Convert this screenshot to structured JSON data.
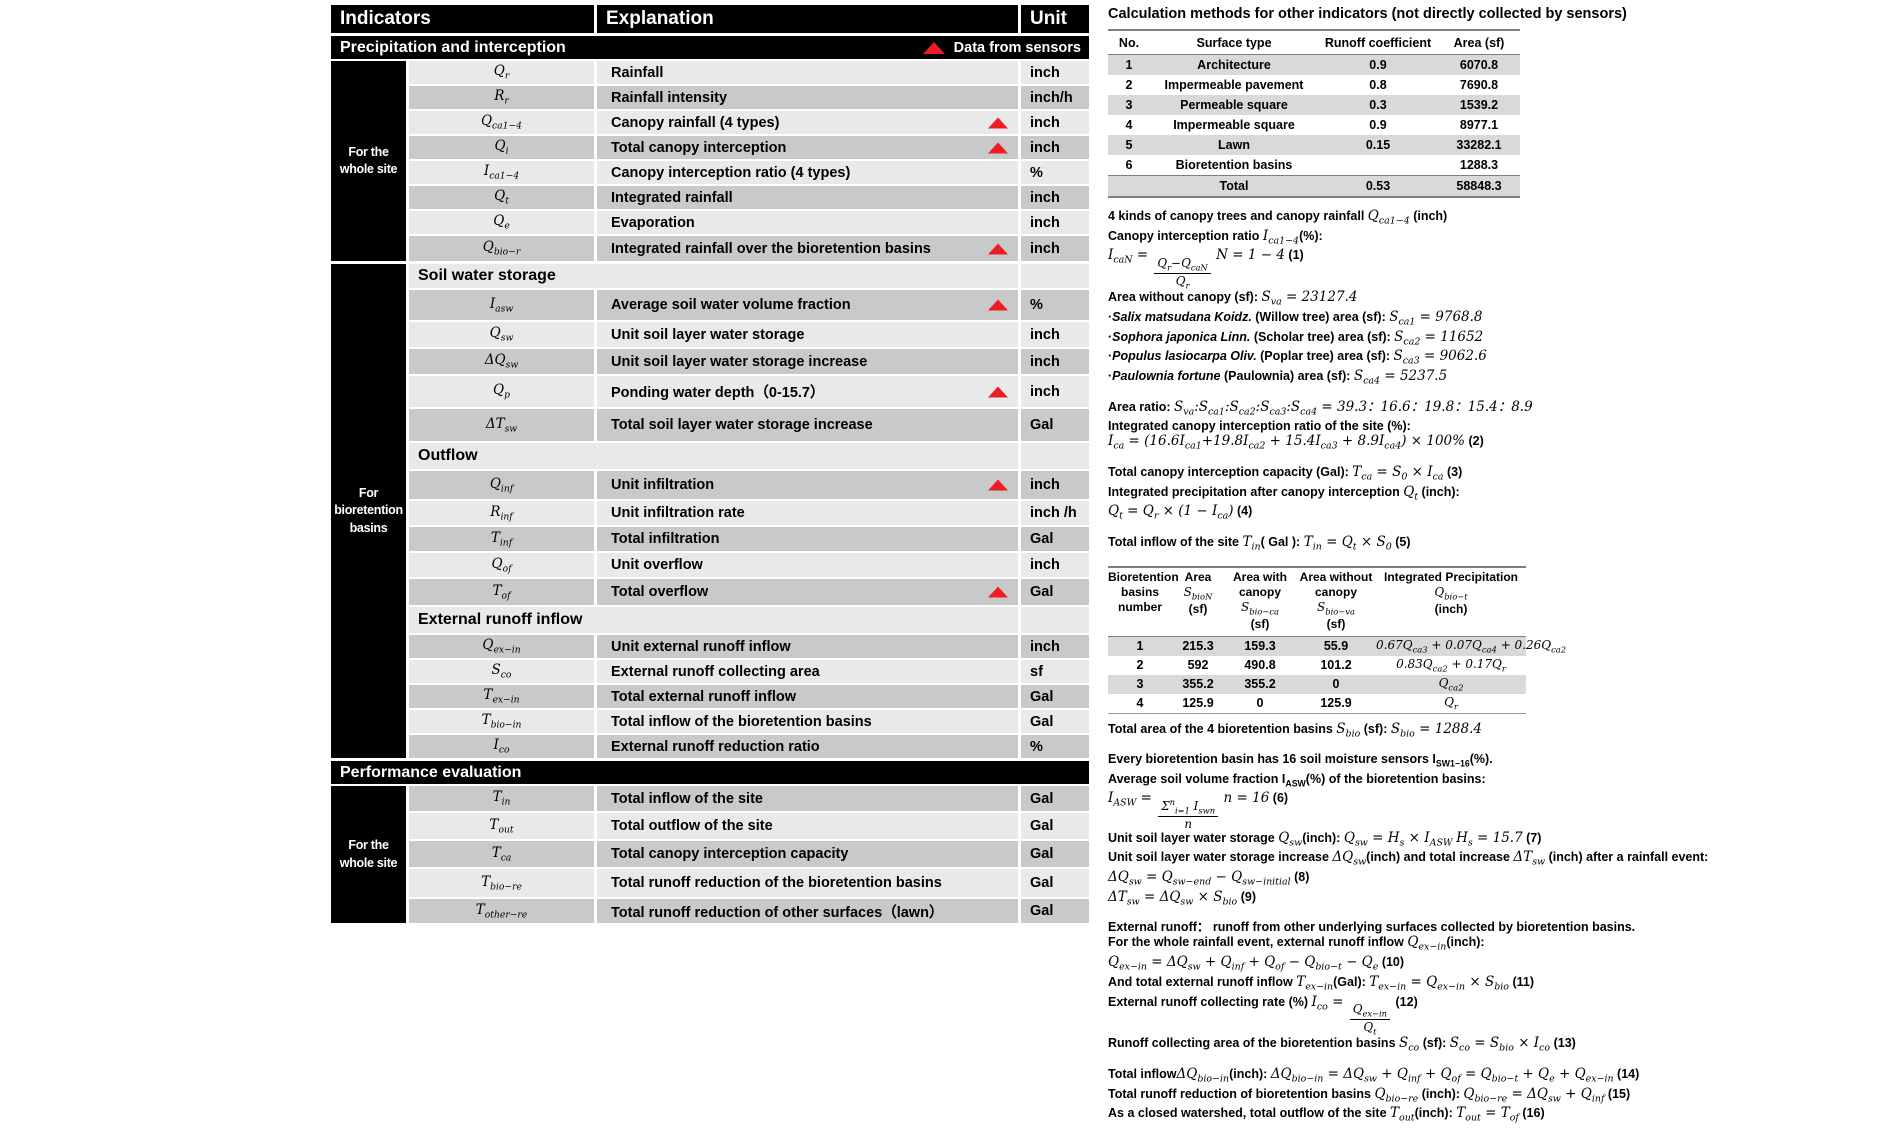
{
  "colors": {
    "accent_red": "#ee1c25",
    "table_black": "#000000",
    "row_light": "#e9e9e9",
    "row_dark": "#c9c9c9",
    "stripe_gray": "#d9d9d9"
  },
  "indicator_table": {
    "header": {
      "indicators": "Indicators",
      "explanation": "Explanation",
      "unit": "Unit"
    },
    "sections": [
      {
        "type": "bar",
        "title": "Precipitation and interception",
        "legend": "Data from sensors"
      },
      {
        "type": "group",
        "label": "For the whole site",
        "items": [
          {
            "symbol": "Q_{r}",
            "explanation": "Rainfall",
            "unit": "inch",
            "sensor": false
          },
          {
            "symbol": "R_{r}",
            "explanation": "Rainfall intensity",
            "unit": "inch/h",
            "sensor": false
          },
          {
            "symbol": "Q_{ca1−4}",
            "explanation": "Canopy rainfall (4 types)",
            "unit": "inch",
            "sensor": true
          },
          {
            "symbol": "Q_{i}",
            "explanation": "Total canopy interception",
            "unit": "inch",
            "sensor": true
          },
          {
            "symbol": "I_{ca1−4}",
            "explanation": "Canopy interception ratio (4 types)",
            "unit": "%",
            "sensor": false
          },
          {
            "symbol": "Q_{t}",
            "explanation": "Integrated rainfall",
            "unit": "inch",
            "sensor": false
          },
          {
            "symbol": "Q_{e}",
            "explanation": "Evaporation",
            "unit": "inch",
            "sensor": false
          },
          {
            "symbol": "Q_{bio−r}",
            "explanation": "Integrated rainfall over the bioretention basins",
            "unit": "inch",
            "sensor": true
          }
        ]
      },
      {
        "type": "group",
        "label": "For bioretention basins",
        "items": [
          {
            "subheader": "Soil water storage"
          },
          {
            "symbol": "I_{asw}",
            "explanation": "Average soil water volume fraction",
            "unit": "%",
            "sensor": true
          },
          {
            "symbol": "Q_{sw}",
            "explanation": "Unit soil layer water storage",
            "unit": "inch",
            "sensor": false
          },
          {
            "symbol": "ΔQ_{sw}",
            "explanation": "Unit soil layer water storage increase",
            "unit": "inch",
            "sensor": false
          },
          {
            "symbol": "Q_{p}",
            "explanation": "Ponding water depth（0-15.7）",
            "unit": "inch",
            "sensor": true
          },
          {
            "symbol": "ΔT_{sw}",
            "explanation": "Total soil layer water storage increase",
            "unit": "Gal",
            "sensor": false
          },
          {
            "subheader": "Outflow"
          },
          {
            "symbol": "Q_{inf}",
            "explanation": "Unit infiltration",
            "unit": "inch",
            "sensor": true
          },
          {
            "symbol": "R_{inf}",
            "explanation": "Unit infiltration rate",
            "unit": "inch /h",
            "sensor": false
          },
          {
            "symbol": "T_{inf}",
            "explanation": "Total infiltration",
            "unit": "Gal",
            "sensor": false
          },
          {
            "symbol": "Q_{of}",
            "explanation": "Unit overflow",
            "unit": "inch",
            "sensor": false
          },
          {
            "symbol": "T_{of}",
            "explanation": "Total overflow",
            "unit": "Gal",
            "sensor": true
          },
          {
            "subheader": "External runoff inflow"
          },
          {
            "symbol": "Q_{ex−in}",
            "explanation": "Unit external runoff inflow",
            "unit": "inch",
            "sensor": false
          },
          {
            "symbol": "S_{co}",
            "explanation": "External runoff collecting area",
            "unit": "sf",
            "sensor": false
          },
          {
            "symbol": "T_{ex−in}",
            "explanation": "Total external runoff inflow",
            "unit": "Gal",
            "sensor": false
          },
          {
            "symbol": "T_{bio−in}",
            "explanation": "Total inflow of the bioretention basins",
            "unit": "Gal",
            "sensor": false
          },
          {
            "symbol": "I_{co}",
            "explanation": "External runoff reduction ratio",
            "unit": "%",
            "sensor": false
          }
        ]
      },
      {
        "type": "bar",
        "title": "Performance evaluation"
      },
      {
        "type": "group",
        "label": "For the whole site",
        "items": [
          {
            "symbol": "T_{in}",
            "explanation": "Total inflow of the site",
            "unit": "Gal",
            "sensor": false
          },
          {
            "symbol": "T_{out}",
            "explanation": "Total outflow of the site",
            "unit": "Gal",
            "sensor": false
          },
          {
            "symbol": "T_{ca}",
            "explanation": "Total canopy interception capacity",
            "unit": "Gal",
            "sensor": false
          },
          {
            "symbol": "T_{bio−re}",
            "explanation": "Total runoff reduction of the bioretention basins",
            "unit": "Gal",
            "sensor": false
          },
          {
            "symbol": "T_{other−re}",
            "explanation": "Total runoff reduction of other surfaces（lawn）",
            "unit": "Gal",
            "sensor": false
          }
        ]
      }
    ]
  },
  "calc_panel": {
    "title": "Calculation methods for other indicators (not directly collected by sensors)",
    "surface_table": {
      "columns": [
        "No.",
        "Surface type",
        "Runoff coefficient",
        "Area (sf)"
      ],
      "rows": [
        [
          "1",
          "Architecture",
          "0.9",
          "6070.8"
        ],
        [
          "2",
          "Impermeable pavement",
          "0.8",
          "7690.8"
        ],
        [
          "3",
          "Permeable square",
          "0.3",
          "1539.2"
        ],
        [
          "4",
          "Impermeable square",
          "0.9",
          "8977.1"
        ],
        [
          "5",
          "Lawn",
          "0.15",
          "33282.1"
        ],
        [
          "6",
          "Bioretention basins",
          "",
          "1288.3"
        ]
      ],
      "total_row": [
        "",
        "Total",
        "0.53",
        "58848.3"
      ]
    },
    "blocks_top": [
      {
        "lines": [
          "4 kinds of canopy trees and canopy rainfall $Q_{ca1−4}$ (inch)",
          "Canopy interception ratio $I_{ca1−4}$(%):",
          "$I_{caN} = {frac|Q_{r}−Q_{caN}|Q_{r}|}$   $N = 1 − 4$ (1)",
          "Area without canopy (sf): $S_{va} = 23127.4$",
          "·*Salix matsudana Koidz.* (Willow tree) area (sf): $S_{ca1} = 9768.8$",
          "·*Sophora japonica Linn.* (Scholar tree) area (sf): $S_{ca2} = 11652$",
          "·*Populus lasiocarpa Oliv.* (Poplar tree) area (sf): $S_{ca3} = 9062.6$",
          "·*Paulownia fortune* (Paulownia) area (sf): $S_{ca4} = 5237.5$"
        ]
      },
      {
        "lines": [
          "Area ratio: $S_{va}:S_{ca1}:S_{ca2}:S_{ca3}:S_{ca4} = 39.3：16.6：19.8：15.4：8.9$",
          "Integrated canopy interception ratio of the site (%):",
          "$I_{ca} = (16.6I_{ca1}+19.8I_{ca2} + 15.4I_{ca3} + 8.9I_{ca4}) × 100%$ (2)"
        ]
      },
      {
        "lines": [
          "Total canopy interception capacity (Gal): $T_{ca} = S_{0} × I_{ca}$  (3)",
          "Integrated precipitation after canopy interception $Q_{t}$ (inch):",
          "$Q_{t} = Q_{r} × (1 − I_{ca})$  (4)"
        ]
      },
      {
        "lines": [
          "Total inflow of the site $T_{in}$( Gal ): $T_{in} = Q_{t} × S_{0}$  (5)"
        ]
      }
    ],
    "basins_table": {
      "columns": [
        {
          "label": "Bioretention basins number",
          "symbol": "",
          "unit": ""
        },
        {
          "label": "Area",
          "symbol": "S_{bioN}",
          "unit": "(sf)"
        },
        {
          "label": "Area with canopy",
          "symbol": "S_{bio−ca}",
          "unit": "(sf)"
        },
        {
          "label": "Area without canopy",
          "symbol": "S_{bio−va}",
          "unit": "(sf)"
        },
        {
          "label": "Integrated Precipitation",
          "symbol": "Q_{bio−t}",
          "unit": "(inch)"
        }
      ],
      "rows": [
        [
          "1",
          "215.3",
          "159.3",
          "55.9",
          "0.67Q_{ca3} + 0.07Q_{ca4} + 0.26Q_{ca2}"
        ],
        [
          "2",
          "592",
          "490.8",
          "101.2",
          "0.83Q_{ca2} + 0.17Q_{r}"
        ],
        [
          "3",
          "355.2",
          "355.2",
          "0",
          "Q_{ca2}"
        ],
        [
          "4",
          "125.9",
          "0",
          "125.9",
          "Q_{r}"
        ]
      ]
    },
    "blocks_bottom": [
      {
        "lines": [
          "Total area of the 4 bioretention basins  $S_{bio}$ (sf):    $S_{bio} = 1288.4$"
        ]
      },
      {
        "lines": [
          "Every bioretention basin has 16 soil moisture sensors I_{SW1−16}(%).",
          "Average soil volume fraction I_{ASW}(%) of the bioretention basins:",
          "$I_{ASW} = {frac|Σ^{n}_{i=1} I_{swn}|n|}$   $n = 16$  (6)",
          "Unit soil layer water storage $Q_{sw}$(inch): $Q_{sw} = H_{s} × I_{ASW}$  $H_{s} = 15.7$  (7)",
          "Unit soil layer water storage increase $ΔQ_{sw}$(inch) and total increase $ΔT_{sw}$ (inch) after a rainfall event:",
          "$ΔQ_{sw} = Q_{sw−end} − Q_{sw−initial}$   (8)",
          "$ΔT_{sw} = ΔQ_{sw} × S_{bio}$  (9)"
        ]
      },
      {
        "lines": [
          "External runoff：  runoff  from other underlying surfaces collected by bioretention basins.",
          "For the whole rainfall event, external runoff inflow $Q_{ex−in}$(inch):",
          "$Q_{ex−in} = ΔQ_{sw} + Q_{inf} + Q_{of} − Q_{bio−t} − Q_{e}$  (10)",
          "And total external runoff inflow $T_{ex−in}$(Gal): $T_{ex−in} = Q_{ex−in} × S_{bio}$  (11)",
          "External runoff collecting rate (%) $I_{co} = {frac|Q_{ex−in}|Q_{t}|}$  (12)",
          "Runoff collecting area of the bioretention basins $S_{co}$ (sf): $S_{co} = S_{bio} × I_{co}$  (13)"
        ]
      },
      {
        "lines": [
          "Total inflow$ΔQ_{bio−in}$(inch): $ΔQ_{bio−in} = ΔQ_{sw} + Q_{inf} + Q_{of} = Q_{bio−t} + Q_{e} + Q_{ex−in}$  (14)",
          "Total runoff reduction of bioretention basins $Q_{bio−re}$ (inch): $Q_{bio−re} = ΔQ_{sw} + Q_{inf}$  (15)",
          "As a closed watershed, total outflow of the site $T_{out}$(inch): $T_{out} = T_{of}$  (16)"
        ]
      }
    ]
  }
}
